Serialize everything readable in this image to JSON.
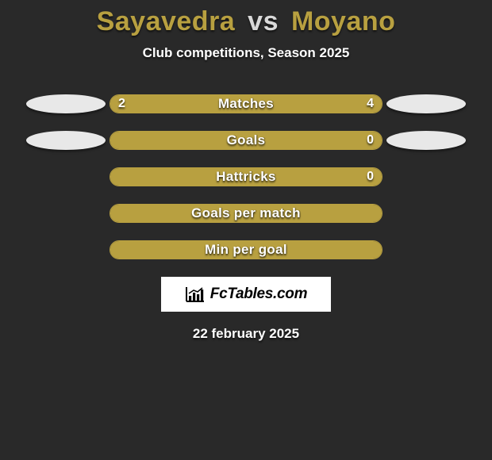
{
  "title": {
    "player1": "Sayavedra",
    "vs": "vs",
    "player2": "Moyano",
    "color1": "#b8a040",
    "color_vs": "#d9d9d9",
    "color2": "#b8a040"
  },
  "subtitle": "Club competitions, Season 2025",
  "date": "22 february 2025",
  "colors": {
    "background": "#292929",
    "accent": "#b8a040",
    "player1_badge": "#e8e8e8",
    "player2_badge": "#e8e8e8",
    "bar_border": "#b8a040",
    "bar_fill": "#b8a040",
    "text": "#ffffff"
  },
  "rows": [
    {
      "label": "Matches",
      "left_value": "2",
      "right_value": "4",
      "left_pct": 33.3,
      "right_pct": 66.7,
      "show_badges": true,
      "show_right_fill": true
    },
    {
      "label": "Goals",
      "left_value": "",
      "right_value": "0",
      "left_pct": 100,
      "right_pct": 0,
      "show_badges": true,
      "show_right_fill": false
    },
    {
      "label": "Hattricks",
      "left_value": "",
      "right_value": "0",
      "left_pct": 100,
      "right_pct": 0,
      "show_badges": false,
      "show_right_fill": false
    },
    {
      "label": "Goals per match",
      "left_value": "",
      "right_value": "",
      "left_pct": 100,
      "right_pct": 0,
      "show_badges": false,
      "show_right_fill": false
    },
    {
      "label": "Min per goal",
      "left_value": "",
      "right_value": "",
      "left_pct": 100,
      "right_pct": 0,
      "show_badges": false,
      "show_right_fill": false
    }
  ],
  "logo": {
    "text": "FcTables.com"
  }
}
